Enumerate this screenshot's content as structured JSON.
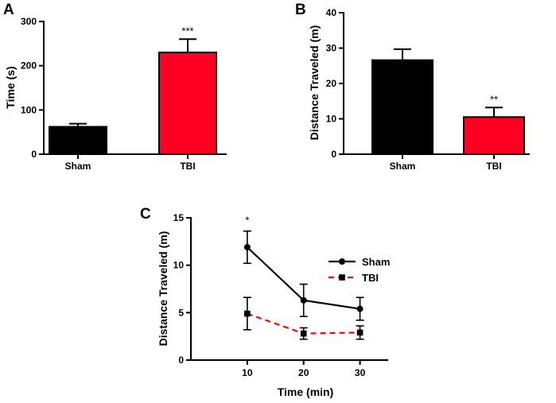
{
  "chart_data": [
    {
      "panel": "A",
      "type": "bar",
      "ylabel": "Time (s)",
      "xlabel": "",
      "ylim": [
        0,
        300
      ],
      "yticks": [
        0,
        100,
        200,
        300
      ],
      "categories": [
        "Sham",
        "TBI"
      ],
      "values": [
        62,
        230
      ],
      "errors": [
        7,
        30
      ],
      "colors": [
        "#000000",
        "#ff0022"
      ],
      "significance": [
        "",
        "***"
      ]
    },
    {
      "panel": "B",
      "type": "bar",
      "ylabel": "Distance Traveled (m)",
      "xlabel": "",
      "ylim": [
        0,
        40
      ],
      "yticks": [
        0,
        10,
        20,
        30,
        40
      ],
      "categories": [
        "Sham",
        "TBI"
      ],
      "values": [
        26.6,
        10.5
      ],
      "errors": [
        3.1,
        2.7
      ],
      "colors": [
        "#000000",
        "#ff0022"
      ],
      "significance": [
        "",
        "**"
      ]
    },
    {
      "panel": "C",
      "type": "line",
      "ylabel": "Distance Traveled (m)",
      "xlabel": "Time (min)",
      "ylim": [
        0,
        15
      ],
      "yticks": [
        0,
        5,
        10,
        15
      ],
      "xlim": [
        0,
        35
      ],
      "x": [
        10,
        20,
        30
      ],
      "series": [
        {
          "name": "Sham",
          "values": [
            11.9,
            6.3,
            5.4
          ],
          "errors": [
            1.7,
            1.7,
            1.2
          ],
          "color": "#000000",
          "marker": "circle",
          "dash": "solid"
        },
        {
          "name": "TBI",
          "values": [
            4.9,
            2.8,
            2.9
          ],
          "errors": [
            1.7,
            0.6,
            0.7
          ],
          "color": "#ff0000",
          "marker": "square",
          "dash": "dashed"
        }
      ],
      "annotations": [
        {
          "x": 10,
          "text": "*"
        }
      ],
      "legend": "right"
    }
  ]
}
